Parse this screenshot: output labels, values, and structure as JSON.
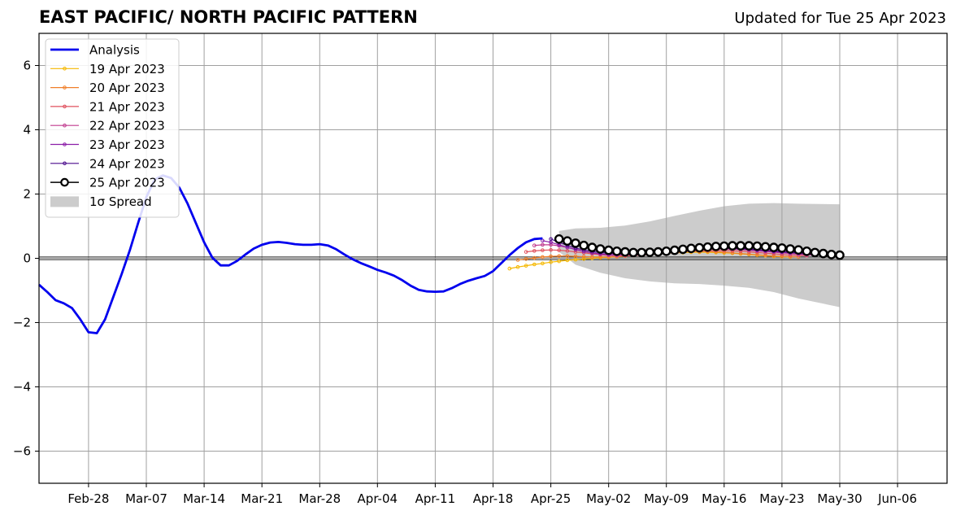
{
  "chart_data": {
    "type": "line",
    "title": "EAST PACIFIC/ NORTH PACIFIC PATTERN",
    "subtitle": "Updated for Tue 25 Apr 2023",
    "xlabel": "",
    "ylabel": "",
    "x_range": [
      "2023-02-22",
      "2023-06-12"
    ],
    "ylim": [
      -7,
      7
    ],
    "grid": true,
    "legend_position": "top-left",
    "x_ticks": [
      "Feb-28",
      "Mar-07",
      "Mar-14",
      "Mar-21",
      "Mar-28",
      "Apr-04",
      "Apr-11",
      "Apr-18",
      "Apr-25",
      "May-02",
      "May-09",
      "May-16",
      "May-23",
      "May-30",
      "Jun-06"
    ],
    "x_tick_dates": [
      "2023-02-28",
      "2023-03-07",
      "2023-03-14",
      "2023-03-21",
      "2023-03-28",
      "2023-04-04",
      "2023-04-11",
      "2023-04-18",
      "2023-04-25",
      "2023-05-02",
      "2023-05-09",
      "2023-05-16",
      "2023-05-23",
      "2023-05-30",
      "2023-06-06"
    ],
    "y_ticks": [
      -6,
      -4,
      -2,
      0,
      2,
      4,
      6
    ],
    "y_tick_labels": [
      "−6",
      "−4",
      "−2",
      "0",
      "2",
      "4",
      "6"
    ],
    "analysis": {
      "name": "Analysis",
      "color": "#0000ee",
      "points": [
        [
          "2023-02-22",
          -0.82
        ],
        [
          "2023-02-23",
          -1.05
        ],
        [
          "2023-02-24",
          -1.3
        ],
        [
          "2023-02-25",
          -1.4
        ],
        [
          "2023-02-26",
          -1.55
        ],
        [
          "2023-02-27",
          -1.9
        ],
        [
          "2023-02-28",
          -2.3
        ],
        [
          "2023-03-01",
          -2.33
        ],
        [
          "2023-03-02",
          -1.9
        ],
        [
          "2023-03-03",
          -1.2
        ],
        [
          "2023-03-04",
          -0.5
        ],
        [
          "2023-03-05",
          0.25
        ],
        [
          "2023-03-06",
          1.1
        ],
        [
          "2023-03-07",
          1.9
        ],
        [
          "2023-03-08",
          2.45
        ],
        [
          "2023-03-09",
          2.58
        ],
        [
          "2023-03-10",
          2.5
        ],
        [
          "2023-03-11",
          2.2
        ],
        [
          "2023-03-12",
          1.7
        ],
        [
          "2023-03-13",
          1.1
        ],
        [
          "2023-03-14",
          0.5
        ],
        [
          "2023-03-15",
          0.02
        ],
        [
          "2023-03-16",
          -0.22
        ],
        [
          "2023-03-17",
          -0.22
        ],
        [
          "2023-03-18",
          -0.08
        ],
        [
          "2023-03-19",
          0.12
        ],
        [
          "2023-03-20",
          0.3
        ],
        [
          "2023-03-21",
          0.42
        ],
        [
          "2023-03-22",
          0.49
        ],
        [
          "2023-03-23",
          0.51
        ],
        [
          "2023-03-24",
          0.48
        ],
        [
          "2023-03-25",
          0.44
        ],
        [
          "2023-03-26",
          0.42
        ],
        [
          "2023-03-27",
          0.42
        ],
        [
          "2023-03-28",
          0.44
        ],
        [
          "2023-03-29",
          0.4
        ],
        [
          "2023-03-30",
          0.28
        ],
        [
          "2023-03-31",
          0.12
        ],
        [
          "2023-04-01",
          -0.03
        ],
        [
          "2023-04-02",
          -0.15
        ],
        [
          "2023-04-03",
          -0.25
        ],
        [
          "2023-04-04",
          -0.36
        ],
        [
          "2023-04-05",
          -0.44
        ],
        [
          "2023-04-06",
          -0.54
        ],
        [
          "2023-04-07",
          -0.68
        ],
        [
          "2023-04-08",
          -0.85
        ],
        [
          "2023-04-09",
          -0.98
        ],
        [
          "2023-04-10",
          -1.03
        ],
        [
          "2023-04-11",
          -1.04
        ],
        [
          "2023-04-12",
          -1.03
        ],
        [
          "2023-04-13",
          -0.93
        ],
        [
          "2023-04-14",
          -0.8
        ],
        [
          "2023-04-15",
          -0.7
        ],
        [
          "2023-04-16",
          -0.62
        ],
        [
          "2023-04-17",
          -0.55
        ],
        [
          "2023-04-18",
          -0.4
        ],
        [
          "2023-04-19",
          -0.15
        ],
        [
          "2023-04-20",
          0.1
        ],
        [
          "2023-04-21",
          0.32
        ],
        [
          "2023-04-22",
          0.5
        ],
        [
          "2023-04-23",
          0.6
        ],
        [
          "2023-04-24",
          0.62
        ]
      ]
    },
    "forecasts": [
      {
        "name": "19 Apr 2023",
        "color": "#f5b800",
        "start": "2023-04-20",
        "values": [
          -0.32,
          -0.27,
          -0.23,
          -0.19,
          -0.16,
          -0.12,
          -0.09,
          -0.06,
          -0.04,
          -0.02,
          0,
          0.02,
          0.03,
          0.05,
          0.07,
          0.09,
          0.11,
          0.13,
          0.15,
          0.16,
          0.17,
          0.18,
          0.19,
          0.19,
          0.19,
          0.18,
          0.17,
          0.16,
          0.14,
          0.12,
          0.1,
          0.08,
          0.06,
          0.05,
          0.04
        ]
      },
      {
        "name": "20 Apr 2023",
        "color": "#f07f2a",
        "start": "2023-04-21",
        "values": [
          -0.05,
          -0.02,
          0.01,
          0.04,
          0.06,
          0.07,
          0.07,
          0.06,
          0.05,
          0.04,
          0.04,
          0.04,
          0.05,
          0.07,
          0.09,
          0.11,
          0.13,
          0.15,
          0.17,
          0.19,
          0.2,
          0.21,
          0.21,
          0.21,
          0.2,
          0.19,
          0.17,
          0.15,
          0.13,
          0.11,
          0.09,
          0.07,
          0.06,
          0.05,
          0.04
        ]
      },
      {
        "name": "21 Apr 2023",
        "color": "#e0505e",
        "start": "2023-04-22",
        "values": [
          0.2,
          0.23,
          0.25,
          0.26,
          0.25,
          0.23,
          0.2,
          0.17,
          0.14,
          0.11,
          0.09,
          0.08,
          0.08,
          0.09,
          0.1,
          0.12,
          0.14,
          0.16,
          0.18,
          0.2,
          0.22,
          0.23,
          0.24,
          0.24,
          0.24,
          0.23,
          0.22,
          0.2,
          0.18,
          0.16,
          0.14,
          0.12,
          0.1,
          0.09,
          0.08
        ]
      },
      {
        "name": "22 Apr 2023",
        "color": "#c03a8e",
        "start": "2023-04-23",
        "values": [
          0.4,
          0.42,
          0.42,
          0.39,
          0.34,
          0.28,
          0.22,
          0.17,
          0.13,
          0.1,
          0.09,
          0.09,
          0.1,
          0.12,
          0.14,
          0.16,
          0.19,
          0.21,
          0.23,
          0.25,
          0.27,
          0.28,
          0.29,
          0.29,
          0.28,
          0.27,
          0.25,
          0.23,
          0.21,
          0.19,
          0.17,
          0.15,
          0.13,
          0.11,
          0.1
        ]
      },
      {
        "name": "23 Apr 2023",
        "color": "#8c1ea8",
        "start": "2023-04-24",
        "values": [
          0.55,
          0.5,
          0.42,
          0.34,
          0.27,
          0.21,
          0.17,
          0.14,
          0.12,
          0.12,
          0.13,
          0.14,
          0.16,
          0.18,
          0.21,
          0.23,
          0.25,
          0.27,
          0.29,
          0.3,
          0.31,
          0.31,
          0.31,
          0.3,
          0.29,
          0.27,
          0.25,
          0.23,
          0.21,
          0.19,
          0.17,
          0.15,
          0.13,
          0.12,
          0.11
        ]
      },
      {
        "name": "24 Apr 2023",
        "color": "#4a0a8c",
        "start": "2023-04-25",
        "values": [
          0.6,
          0.5,
          0.4,
          0.32,
          0.26,
          0.21,
          0.18,
          0.16,
          0.15,
          0.15,
          0.16,
          0.18,
          0.2,
          0.22,
          0.25,
          0.27,
          0.29,
          0.31,
          0.32,
          0.33,
          0.33,
          0.33,
          0.32,
          0.31,
          0.29,
          0.27,
          0.25,
          0.23,
          0.21,
          0.19,
          0.17,
          0.15,
          0.14,
          0.13,
          0.12
        ]
      }
    ],
    "current_forecast": {
      "name": "25 Apr 2023",
      "color": "#000000",
      "start": "2023-04-26",
      "values": [
        0.6,
        0.54,
        0.47,
        0.4,
        0.34,
        0.29,
        0.25,
        0.22,
        0.2,
        0.18,
        0.18,
        0.19,
        0.2,
        0.22,
        0.25,
        0.28,
        0.31,
        0.33,
        0.35,
        0.37,
        0.38,
        0.39,
        0.39,
        0.39,
        0.38,
        0.36,
        0.34,
        0.32,
        0.29,
        0.26,
        0.22,
        0.18,
        0.15,
        0.12,
        0.1
      ]
    },
    "spread": {
      "name": "1σ Spread",
      "color": "#cccccc",
      "dates": [
        "2023-04-26",
        "2023-04-28",
        "2023-05-01",
        "2023-05-04",
        "2023-05-07",
        "2023-05-10",
        "2023-05-13",
        "2023-05-16",
        "2023-05-19",
        "2023-05-22",
        "2023-05-25",
        "2023-05-30"
      ],
      "upper": [
        0.85,
        0.93,
        0.95,
        1.02,
        1.15,
        1.32,
        1.48,
        1.62,
        1.7,
        1.72,
        1.7,
        1.68
      ],
      "lower": [
        0.2,
        -0.2,
        -0.45,
        -0.62,
        -0.72,
        -0.78,
        -0.8,
        -0.85,
        -0.92,
        -1.05,
        -1.25,
        -1.52
      ]
    }
  }
}
